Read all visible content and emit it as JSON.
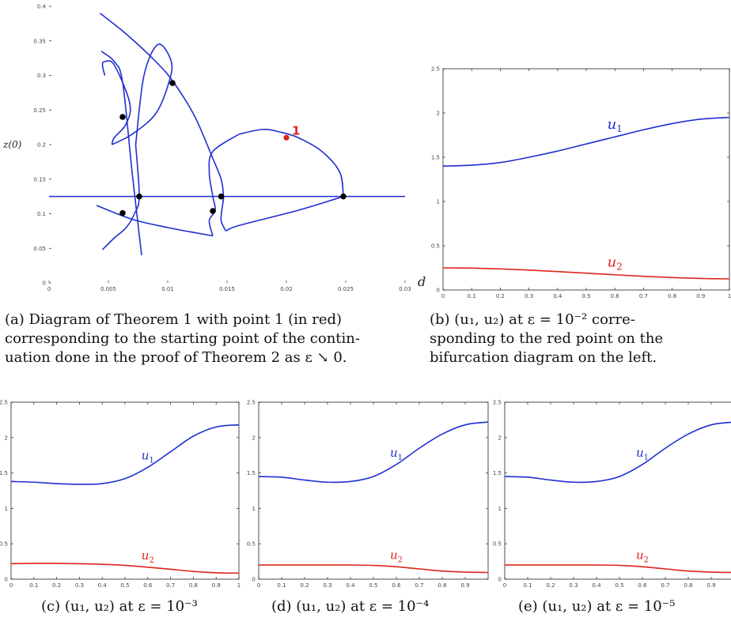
{
  "chart_data": [
    {
      "panel": "a",
      "type": "line",
      "xlabel": "d",
      "ylabel": "z(0)",
      "xlim": [
        0,
        0.03
      ],
      "ylim": [
        0,
        0.4
      ],
      "xticks": [
        "0",
        "0.005",
        "0.01",
        "0.015",
        "0.02",
        "0.025",
        "0.03"
      ],
      "yticks": [
        "0",
        "0.05",
        "0.1",
        "0.15",
        "0.2",
        "0.25",
        "0.3",
        "0.35",
        "0.4"
      ],
      "curve_color": "#1f2fd0",
      "series": [
        {
          "x": [
            0,
            0.03
          ],
          "y": [
            0.125,
            0.125
          ]
        },
        {
          "x": [
            0.0043,
            0.0065,
            0.009,
            0.0105,
            0.0123,
            0.0138
          ],
          "y": [
            0.39,
            0.36,
            0.32,
            0.29,
            0.24,
            0.18
          ]
        },
        {
          "x": [
            0.0138,
            0.0145,
            0.0147,
            0.0146,
            0.0145,
            0.0149
          ],
          "y": [
            0.18,
            0.15,
            0.125,
            0.11,
            0.09,
            0.075
          ]
        },
        {
          "x": [
            0.0149,
            0.016,
            0.021,
            0.0248
          ],
          "y": [
            0.075,
            0.083,
            0.105,
            0.125
          ]
        },
        {
          "x": [
            0.0248,
            0.0245,
            0.023,
            0.021,
            0.0195,
            0.018,
            0.016
          ],
          "y": [
            0.125,
            0.16,
            0.19,
            0.21,
            0.218,
            0.222,
            0.215
          ]
        },
        {
          "x": [
            0.016,
            0.0138,
            0.0135,
            0.0138,
            0.014,
            0.0135,
            0.0138
          ],
          "y": [
            0.215,
            0.19,
            0.16,
            0.125,
            0.105,
            0.09,
            0.068
          ]
        },
        {
          "x": [
            0.0138,
            0.0125,
            0.01,
            0.007,
            0.004
          ],
          "y": [
            0.068,
            0.072,
            0.08,
            0.092,
            0.112
          ]
        },
        {
          "x": [
            0.0044,
            0.0055,
            0.0062,
            0.007,
            0.0078
          ],
          "y": [
            0.335,
            0.32,
            0.29,
            0.16,
            0.04
          ]
        },
        {
          "x": [
            0.0045,
            0.0055,
            0.0065,
            0.0072,
            0.0076,
            0.0073
          ],
          "y": [
            0.048,
            0.065,
            0.08,
            0.1,
            0.125,
            0.2
          ]
        },
        {
          "x": [
            0.0073,
            0.008,
            0.0092,
            0.0103,
            0.0101,
            0.009,
            0.007,
            0.0053
          ],
          "y": [
            0.2,
            0.3,
            0.345,
            0.32,
            0.29,
            0.245,
            0.215,
            0.2
          ]
        },
        {
          "x": [
            0.0053,
            0.0055,
            0.0065,
            0.0068,
            0.0055,
            0.0047,
            0.0045,
            0.0047
          ],
          "y": [
            0.2,
            0.21,
            0.23,
            0.26,
            0.315,
            0.32,
            0.315,
            0.3
          ]
        }
      ],
      "points": [
        {
          "x": 0.0104,
          "y": 0.289
        },
        {
          "x": 0.0062,
          "y": 0.24
        },
        {
          "x": 0.0076,
          "y": 0.125
        },
        {
          "x": 0.0062,
          "y": 0.101
        },
        {
          "x": 0.0138,
          "y": 0.104
        },
        {
          "x": 0.0145,
          "y": 0.125
        },
        {
          "x": 0.0248,
          "y": 0.125
        }
      ],
      "highlight": {
        "x": 0.02,
        "y": 0.21,
        "label": "1",
        "color": "#e0231a"
      }
    },
    {
      "panel": "b",
      "type": "line",
      "xlim": [
        0,
        1
      ],
      "ylim": [
        0,
        2.5
      ],
      "xticks": [
        "0",
        "0.1",
        "0.2",
        "0.3",
        "0.4",
        "0.5",
        "0.6",
        "0.7",
        "0.8",
        "0.9",
        "1"
      ],
      "yticks": [
        "0",
        "0.5",
        "1",
        "1.5",
        "2",
        "2.5"
      ],
      "series": [
        {
          "name": "u_1",
          "color": "#1f2fd0",
          "x": [
            0,
            0.1,
            0.2,
            0.3,
            0.4,
            0.5,
            0.6,
            0.7,
            0.8,
            0.9,
            1
          ],
          "y": [
            1.4,
            1.41,
            1.44,
            1.5,
            1.57,
            1.65,
            1.73,
            1.81,
            1.88,
            1.93,
            1.95
          ]
        },
        {
          "name": "u_2",
          "color": "#e0231a",
          "x": [
            0,
            0.1,
            0.2,
            0.3,
            0.4,
            0.5,
            0.6,
            0.7,
            0.8,
            0.9,
            1
          ],
          "y": [
            0.25,
            0.247,
            0.238,
            0.225,
            0.208,
            0.19,
            0.172,
            0.155,
            0.14,
            0.13,
            0.125
          ]
        }
      ]
    },
    {
      "panel": "c",
      "type": "line",
      "xlim": [
        0,
        1
      ],
      "ylim": [
        0,
        2.5
      ],
      "xticks": [
        "0",
        "0.1",
        "0.2",
        "0.3",
        "0.4",
        "0.5",
        "0.6",
        "0.7",
        "0.8",
        "0.9",
        "1"
      ],
      "yticks": [
        "0",
        "0.5",
        "1",
        "1.5",
        "2",
        "2.5"
      ],
      "series": [
        {
          "name": "u_1",
          "color": "#1f2fd0",
          "x": [
            0,
            0.1,
            0.2,
            0.3,
            0.4,
            0.5,
            0.6,
            0.7,
            0.8,
            0.9,
            1
          ],
          "y": [
            1.38,
            1.37,
            1.35,
            1.34,
            1.35,
            1.42,
            1.58,
            1.8,
            2.02,
            2.15,
            2.18
          ]
        },
        {
          "name": "u_2",
          "color": "#e0231a",
          "x": [
            0,
            0.1,
            0.2,
            0.3,
            0.4,
            0.5,
            0.6,
            0.7,
            0.8,
            0.9,
            1
          ],
          "y": [
            0.22,
            0.222,
            0.222,
            0.218,
            0.21,
            0.195,
            0.17,
            0.14,
            0.11,
            0.09,
            0.085
          ]
        }
      ]
    },
    {
      "panel": "d",
      "type": "line",
      "xlim": [
        0,
        1
      ],
      "ylim": [
        0,
        2.5
      ],
      "xticks": [
        "0",
        "0.1",
        "0.2",
        "0.3",
        "0.4",
        "0.5",
        "0.6",
        "0.7",
        "0.8",
        "0.9"
      ],
      "yticks": [
        "0",
        "0.5",
        "1",
        "1.5",
        "2",
        "2.5"
      ],
      "series": [
        {
          "name": "u_1",
          "color": "#1f2fd0",
          "x": [
            0,
            0.1,
            0.2,
            0.3,
            0.4,
            0.5,
            0.6,
            0.7,
            0.8,
            0.9,
            1
          ],
          "y": [
            1.45,
            1.44,
            1.4,
            1.37,
            1.38,
            1.45,
            1.62,
            1.85,
            2.05,
            2.18,
            2.22
          ]
        },
        {
          "name": "u_2",
          "color": "#e0231a",
          "x": [
            0,
            0.1,
            0.2,
            0.3,
            0.4,
            0.5,
            0.6,
            0.7,
            0.8,
            0.9,
            1
          ],
          "y": [
            0.2,
            0.2,
            0.2,
            0.2,
            0.2,
            0.195,
            0.175,
            0.145,
            0.115,
            0.1,
            0.095
          ]
        }
      ]
    },
    {
      "panel": "e",
      "type": "line",
      "xlim": [
        0,
        1
      ],
      "ylim": [
        0,
        2.5
      ],
      "xticks": [
        "0",
        "0.1",
        "0.2",
        "0.3",
        "0.4",
        "0.5",
        "0.6",
        "0.7",
        "0.8",
        "0.9"
      ],
      "yticks": [
        "0",
        "0.5",
        "1",
        "1.5",
        "2",
        "2.5"
      ],
      "series": [
        {
          "name": "u_1",
          "color": "#1f2fd0",
          "x": [
            0,
            0.1,
            0.2,
            0.3,
            0.4,
            0.5,
            0.6,
            0.7,
            0.8,
            0.9,
            1
          ],
          "y": [
            1.45,
            1.44,
            1.4,
            1.37,
            1.38,
            1.45,
            1.62,
            1.85,
            2.05,
            2.18,
            2.22
          ]
        },
        {
          "name": "u_2",
          "color": "#e0231a",
          "x": [
            0,
            0.1,
            0.2,
            0.3,
            0.4,
            0.5,
            0.6,
            0.7,
            0.8,
            0.9,
            1
          ],
          "y": [
            0.2,
            0.2,
            0.2,
            0.2,
            0.2,
            0.195,
            0.175,
            0.145,
            0.115,
            0.1,
            0.095
          ]
        }
      ]
    }
  ],
  "captions": {
    "a_lines": [
      "(a) Diagram of Theorem 1 with point 1 (in red)",
      "corresponding to the starting point of the contin-",
      "uation done in the proof of Theorem 2 as ε ↘ 0."
    ],
    "b_lines": [
      "(b) (u₁, u₂) at ε = 10⁻² corre-",
      "sponding to the red point on the",
      "bifurcation diagram on the left."
    ],
    "c": "(c) (u₁, u₂) at ε = 10⁻³",
    "d": "(d) (u₁, u₂) at ε = 10⁻⁴",
    "e": "(e) (u₁, u₂) at ε = 10⁻⁵"
  }
}
